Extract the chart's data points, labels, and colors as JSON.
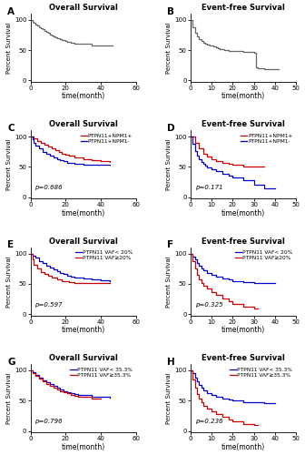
{
  "panels": [
    {
      "label": "A",
      "title": "Overall Survival",
      "xlabel": "time(month)",
      "ylabel": "Percent Survival",
      "xlim": [
        0,
        60
      ],
      "ylim": [
        -2,
        110
      ],
      "xticks": [
        0,
        20,
        40,
        60
      ],
      "yticks": [
        0,
        50,
        100
      ],
      "curves": [
        {
          "color": "#666666",
          "times": [
            0,
            1,
            2,
            3,
            4,
            5,
            6,
            7,
            8,
            9,
            10,
            11,
            12,
            13,
            14,
            15,
            16,
            17,
            18,
            19,
            20,
            21,
            22,
            23,
            24,
            25,
            26,
            27,
            28,
            29,
            30,
            35,
            40,
            45,
            47
          ],
          "surv": [
            100,
            97,
            95,
            92,
            90,
            88,
            86,
            84,
            82,
            80,
            78,
            76,
            74,
            72,
            71,
            70,
            69,
            68,
            67,
            66,
            65,
            64,
            63,
            62,
            62,
            61,
            60,
            60,
            60,
            60,
            60,
            58,
            57,
            57,
            57
          ]
        }
      ],
      "pvalue": null
    },
    {
      "label": "B",
      "title": "Event-free Survival",
      "xlabel": "time(month)",
      "ylabel": "Percent Survival",
      "xlim": [
        0,
        50
      ],
      "ylim": [
        -2,
        110
      ],
      "xticks": [
        0,
        10,
        20,
        30,
        40,
        50
      ],
      "yticks": [
        0,
        50,
        100
      ],
      "curves": [
        {
          "color": "#666666",
          "times": [
            0,
            1,
            2,
            3,
            4,
            5,
            6,
            7,
            8,
            9,
            10,
            11,
            12,
            13,
            14,
            15,
            16,
            17,
            18,
            19,
            20,
            25,
            30,
            31,
            32,
            35,
            40,
            42
          ],
          "surv": [
            100,
            88,
            78,
            72,
            68,
            65,
            62,
            60,
            59,
            58,
            57,
            56,
            55,
            53,
            52,
            51,
            50,
            50,
            49,
            49,
            48,
            47,
            46,
            22,
            20,
            19,
            18,
            18
          ]
        }
      ],
      "pvalue": null
    },
    {
      "label": "C",
      "title": "Overall Survival",
      "xlabel": "time(month)",
      "ylabel": "Percent Survival",
      "xlim": [
        0,
        60
      ],
      "ylim": [
        -2,
        110
      ],
      "xticks": [
        0,
        20,
        40,
        60
      ],
      "yticks": [
        0,
        50,
        100
      ],
      "curves": [
        {
          "label": "PTPN11+NPM1+",
          "color": "#cc0000",
          "times": [
            0,
            2,
            4,
            6,
            8,
            10,
            12,
            14,
            16,
            18,
            20,
            22,
            25,
            30,
            35,
            40,
            45
          ],
          "surv": [
            100,
            97,
            93,
            90,
            87,
            83,
            80,
            77,
            74,
            72,
            70,
            68,
            66,
            63,
            61,
            59,
            58
          ]
        },
        {
          "label": "PTPN11+NPM1-",
          "color": "#0000cc",
          "times": [
            0,
            1,
            2,
            3,
            5,
            7,
            9,
            11,
            13,
            15,
            17,
            19,
            21,
            23,
            25,
            30,
            35,
            40,
            45
          ],
          "surv": [
            100,
            95,
            90,
            85,
            80,
            75,
            72,
            69,
            66,
            63,
            61,
            59,
            57,
            56,
            55,
            54,
            54,
            54,
            54
          ]
        }
      ],
      "pvalue": "p=0.686"
    },
    {
      "label": "D",
      "title": "Event-free Survival",
      "xlabel": "time(month)",
      "ylabel": "Percent Survival",
      "xlim": [
        0,
        50
      ],
      "ylim": [
        -2,
        110
      ],
      "xticks": [
        0,
        10,
        20,
        30,
        40,
        50
      ],
      "yticks": [
        0,
        50,
        100
      ],
      "curves": [
        {
          "label": "PTPN11+NPM1+",
          "color": "#cc0000",
          "times": [
            0,
            2,
            4,
            6,
            8,
            10,
            12,
            15,
            18,
            20,
            25,
            30,
            35
          ],
          "surv": [
            100,
            90,
            80,
            72,
            67,
            63,
            60,
            57,
            55,
            53,
            51,
            50,
            50
          ]
        },
        {
          "label": "PTPN11+NPM1-",
          "color": "#0000cc",
          "times": [
            0,
            1,
            2,
            3,
            4,
            5,
            6,
            7,
            8,
            10,
            12,
            15,
            18,
            20,
            25,
            30,
            32,
            35,
            38,
            40
          ],
          "surv": [
            100,
            88,
            76,
            68,
            62,
            58,
            55,
            52,
            49,
            46,
            43,
            39,
            35,
            32,
            28,
            20,
            20,
            15,
            15,
            15
          ]
        }
      ],
      "pvalue": "p=0.171"
    },
    {
      "label": "E",
      "title": "Overall Survival",
      "xlabel": "time(month)",
      "ylabel": "Percent Survival",
      "xlim": [
        0,
        60
      ],
      "ylim": [
        -2,
        110
      ],
      "xticks": [
        0,
        20,
        40,
        60
      ],
      "yticks": [
        0,
        50,
        100
      ],
      "curves": [
        {
          "label": "PTPN11 VAF< 20%",
          "color": "#0000cc",
          "times": [
            0,
            1,
            3,
            5,
            7,
            9,
            11,
            13,
            15,
            17,
            19,
            21,
            23,
            25,
            27,
            30,
            35,
            40,
            45
          ],
          "surv": [
            100,
            97,
            93,
            88,
            84,
            80,
            77,
            74,
            71,
            68,
            66,
            64,
            62,
            61,
            60,
            59,
            57,
            56,
            55
          ]
        },
        {
          "label": "PTPN11 VAF≥20%",
          "color": "#cc0000",
          "times": [
            0,
            1,
            2,
            4,
            6,
            8,
            10,
            12,
            15,
            18,
            20,
            22,
            25,
            30,
            35,
            40,
            45
          ],
          "surv": [
            100,
            90,
            82,
            75,
            70,
            66,
            63,
            60,
            57,
            55,
            54,
            53,
            52,
            51,
            51,
            51,
            51
          ]
        }
      ],
      "pvalue": "p=0.597"
    },
    {
      "label": "F",
      "title": "Event-free Survival",
      "xlabel": "time(month)",
      "ylabel": "Percent Survival",
      "xlim": [
        0,
        50
      ],
      "ylim": [
        -2,
        110
      ],
      "xticks": [
        0,
        10,
        20,
        30,
        40,
        50
      ],
      "yticks": [
        0,
        50,
        100
      ],
      "curves": [
        {
          "label": "PTPN11 VAF< 20%",
          "color": "#0000cc",
          "times": [
            0,
            1,
            2,
            3,
            4,
            5,
            6,
            8,
            10,
            12,
            15,
            18,
            20,
            25,
            30,
            35,
            40
          ],
          "surv": [
            100,
            95,
            90,
            85,
            80,
            76,
            72,
            68,
            65,
            62,
            59,
            57,
            55,
            53,
            52,
            51,
            51
          ]
        },
        {
          "label": "PTPN11 VAF≥20%",
          "color": "#cc0000",
          "times": [
            0,
            1,
            2,
            3,
            4,
            5,
            6,
            8,
            10,
            12,
            15,
            18,
            20,
            25,
            30,
            32
          ],
          "surv": [
            100,
            87,
            75,
            65,
            57,
            52,
            47,
            42,
            37,
            32,
            26,
            21,
            17,
            12,
            10,
            10
          ]
        }
      ],
      "pvalue": "p=0.325"
    },
    {
      "label": "G",
      "title": "Overall Survival",
      "xlabel": "time(month)",
      "ylabel": "Percent Survival",
      "xlim": [
        0,
        60
      ],
      "ylim": [
        -2,
        110
      ],
      "xticks": [
        0,
        20,
        40,
        60
      ],
      "yticks": [
        0,
        50,
        100
      ],
      "curves": [
        {
          "label": "PTPN11 VAF< 35.3%",
          "color": "#0000cc",
          "times": [
            0,
            1,
            3,
            5,
            7,
            9,
            11,
            13,
            15,
            17,
            19,
            21,
            23,
            25,
            27,
            30,
            35,
            40,
            45
          ],
          "surv": [
            100,
            97,
            93,
            88,
            84,
            80,
            77,
            74,
            71,
            68,
            66,
            64,
            62,
            61,
            60,
            59,
            57,
            56,
            55
          ]
        },
        {
          "label": "PTPN11 VAF≥35.3%",
          "color": "#cc0000",
          "times": [
            0,
            1,
            3,
            5,
            7,
            9,
            11,
            13,
            15,
            17,
            19,
            21,
            23,
            25,
            27,
            30,
            35,
            40
          ],
          "surv": [
            100,
            96,
            91,
            86,
            82,
            78,
            74,
            71,
            68,
            66,
            64,
            62,
            60,
            58,
            57,
            56,
            54,
            53
          ]
        }
      ],
      "pvalue": "p=0.796"
    },
    {
      "label": "H",
      "title": "Event-free Survival",
      "xlabel": "time(month)",
      "ylabel": "Percent Survival",
      "xlim": [
        0,
        50
      ],
      "ylim": [
        -2,
        110
      ],
      "xticks": [
        0,
        10,
        20,
        30,
        40,
        50
      ],
      "yticks": [
        0,
        50,
        100
      ],
      "curves": [
        {
          "label": "PTPN11 VAF< 35.3%",
          "color": "#0000cc",
          "times": [
            0,
            1,
            2,
            3,
            4,
            5,
            6,
            8,
            10,
            12,
            15,
            18,
            20,
            25,
            30,
            35,
            38,
            40
          ],
          "surv": [
            100,
            95,
            88,
            82,
            76,
            71,
            67,
            63,
            60,
            57,
            54,
            52,
            50,
            48,
            47,
            46,
            46,
            46
          ]
        },
        {
          "label": "PTPN11 VAF≥35.3%",
          "color": "#cc0000",
          "times": [
            0,
            1,
            2,
            3,
            4,
            5,
            6,
            8,
            10,
            12,
            15,
            18,
            20,
            25,
            30,
            32
          ],
          "surv": [
            100,
            85,
            72,
            61,
            53,
            47,
            42,
            37,
            32,
            28,
            23,
            19,
            16,
            12,
            10,
            10
          ]
        }
      ],
      "pvalue": "p=0.236"
    }
  ]
}
